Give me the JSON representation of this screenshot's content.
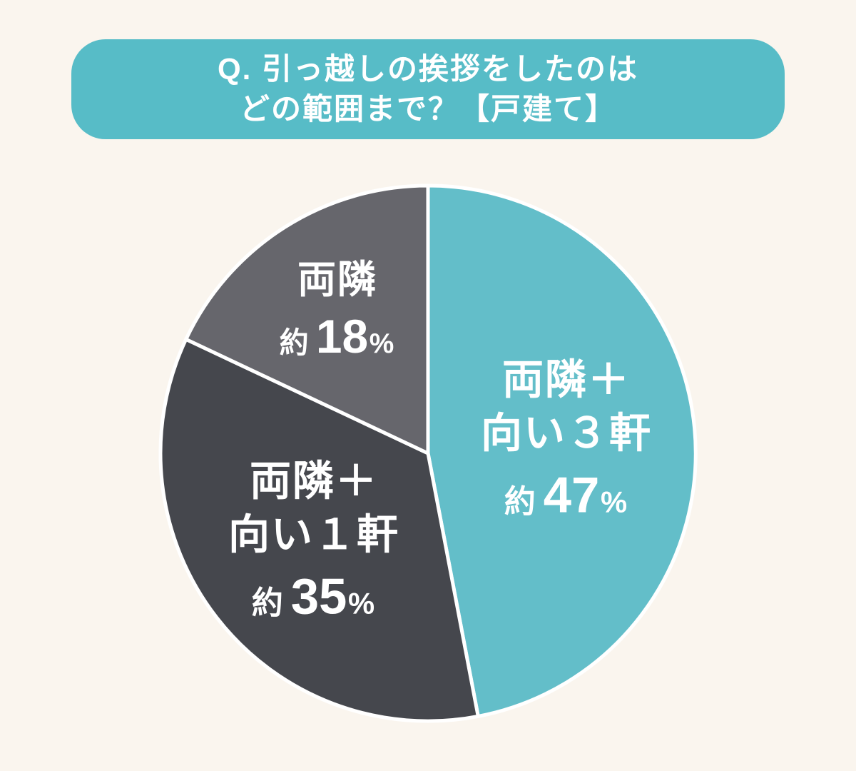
{
  "title": {
    "line1": "Q. 引っ越しの挨拶をしたのは",
    "line2": "どの範囲まで？【戸建て】"
  },
  "colors": {
    "background": "#FAF5EE",
    "banner": "#57BCC7",
    "slice_stroke": "#FFFFFF",
    "label_text": "#FFFFFF"
  },
  "chart_data": {
    "type": "pie",
    "title": "Q. 引っ越しの挨拶をしたのはどの範囲まで？【戸建て】",
    "start_angle_deg": 0,
    "direction": "clockwise",
    "unit": "%",
    "legend_position": "none",
    "slices": [
      {
        "name": "両隣＋向い３軒",
        "label_lines": [
          "両隣＋",
          "向い３軒"
        ],
        "approx": "約",
        "value_pct": 47,
        "percent_sign": "%",
        "color": "#63BEC9"
      },
      {
        "name": "両隣＋向い１軒",
        "label_lines": [
          "両隣＋",
          "向い１軒"
        ],
        "approx": "約",
        "value_pct": 35,
        "percent_sign": "%",
        "color": "#45474D"
      },
      {
        "name": "両隣",
        "label_lines": [
          "両隣"
        ],
        "approx": "約",
        "value_pct": 18,
        "percent_sign": "%",
        "color": "#66666C"
      }
    ]
  }
}
